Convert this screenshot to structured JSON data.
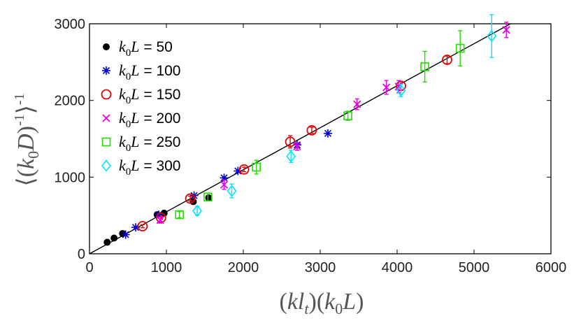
{
  "chart_data": {
    "type": "scatter",
    "title": "",
    "xlabel": {
      "pre": "(",
      "k": "k",
      "l": "l",
      "t_sub": "t",
      "mid": ")(",
      "k0": "k",
      "zero_sub": "0",
      "L": "L",
      "post": ")"
    },
    "ylabel": {
      "open": "⟨(",
      "k": "k",
      "zero_sub": "0",
      "D": "D",
      "close": ")",
      "inner_sup": "-1",
      "bracket": "⟩",
      "outer_sup": "-1"
    },
    "xlim": [
      0,
      6000
    ],
    "ylim": [
      0,
      3000
    ],
    "xticks": [
      "0",
      "1000",
      "2000",
      "3000",
      "4000",
      "5000",
      "6000"
    ],
    "yticks": [
      "0",
      "1000",
      "2000",
      "3000"
    ],
    "grid": false,
    "legend_position": "top-left",
    "fit_line": {
      "slope": 0.548,
      "intercept": 0,
      "color": "#000000"
    },
    "series": [
      {
        "name": {
          "k": "k",
          "sub": "0",
          "L": "L",
          "eq": " = 50"
        },
        "marker": "dot",
        "color": "#000000",
        "points": [
          {
            "x": 230,
            "y": 150,
            "err": 0
          },
          {
            "x": 320,
            "y": 205,
            "err": 0
          },
          {
            "x": 430,
            "y": 265,
            "err": 0
          },
          {
            "x": 880,
            "y": 510,
            "err": 0
          },
          {
            "x": 970,
            "y": 530,
            "err": 0
          },
          {
            "x": 1350,
            "y": 680,
            "err": 0
          },
          {
            "x": 1550,
            "y": 730,
            "err": 0
          }
        ]
      },
      {
        "name": {
          "k": "k",
          "sub": "0",
          "L": "L",
          "eq": " = 100"
        },
        "marker": "asterisk",
        "color": "#0000cc",
        "points": [
          {
            "x": 470,
            "y": 250,
            "err": 0
          },
          {
            "x": 600,
            "y": 345,
            "err": 0
          },
          {
            "x": 900,
            "y": 510,
            "err": 0
          },
          {
            "x": 1360,
            "y": 760,
            "err": 0
          },
          {
            "x": 1750,
            "y": 990,
            "err": 0
          },
          {
            "x": 1930,
            "y": 1080,
            "err": 0
          },
          {
            "x": 2700,
            "y": 1420,
            "err": 0
          },
          {
            "x": 3100,
            "y": 1570,
            "err": 0
          }
        ]
      },
      {
        "name": {
          "k": "k",
          "sub": "0",
          "L": "L",
          "eq": " = 150"
        },
        "marker": "circle",
        "color": "#e60000",
        "points": [
          {
            "x": 690,
            "y": 360,
            "err": 20
          },
          {
            "x": 930,
            "y": 470,
            "err": 20
          },
          {
            "x": 1310,
            "y": 720,
            "err": 30
          },
          {
            "x": 2010,
            "y": 1100,
            "err": 30
          },
          {
            "x": 2610,
            "y": 1460,
            "err": 80
          },
          {
            "x": 2890,
            "y": 1610,
            "err": 40
          },
          {
            "x": 4050,
            "y": 2190,
            "err": 60
          },
          {
            "x": 4650,
            "y": 2530,
            "err": 50
          }
        ]
      },
      {
        "name": {
          "k": "k",
          "sub": "0",
          "L": "L",
          "eq": " = 200"
        },
        "marker": "x",
        "color": "#e600e6",
        "points": [
          {
            "x": 920,
            "y": 440,
            "err": 40
          },
          {
            "x": 1750,
            "y": 900,
            "err": 60
          },
          {
            "x": 2700,
            "y": 1400,
            "err": 50
          },
          {
            "x": 3480,
            "y": 1950,
            "err": 70
          },
          {
            "x": 3860,
            "y": 2170,
            "err": 90
          },
          {
            "x": 4020,
            "y": 2180,
            "err": 80
          },
          {
            "x": 5420,
            "y": 2920,
            "err": 100
          }
        ]
      },
      {
        "name": {
          "k": "k",
          "sub": "0",
          "L": "L",
          "eq": " = 250"
        },
        "marker": "square",
        "color": "#22dd00",
        "points": [
          {
            "x": 1170,
            "y": 510,
            "err": 40
          },
          {
            "x": 1540,
            "y": 740,
            "err": 50
          },
          {
            "x": 2170,
            "y": 1130,
            "err": 90
          },
          {
            "x": 3360,
            "y": 1800,
            "err": 60
          },
          {
            "x": 4360,
            "y": 2440,
            "err": 200
          },
          {
            "x": 4820,
            "y": 2680,
            "err": 230
          }
        ]
      },
      {
        "name": {
          "k": "k",
          "sub": "0",
          "L": "L",
          "eq": " = 300"
        },
        "marker": "diamond",
        "color": "#00e6ff",
        "points": [
          {
            "x": 1400,
            "y": 560,
            "err": 60
          },
          {
            "x": 1850,
            "y": 820,
            "err": 90
          },
          {
            "x": 2620,
            "y": 1270,
            "err": 80
          },
          {
            "x": 4050,
            "y": 2130,
            "err": 80
          },
          {
            "x": 5230,
            "y": 2840,
            "err": 280
          }
        ]
      }
    ]
  }
}
